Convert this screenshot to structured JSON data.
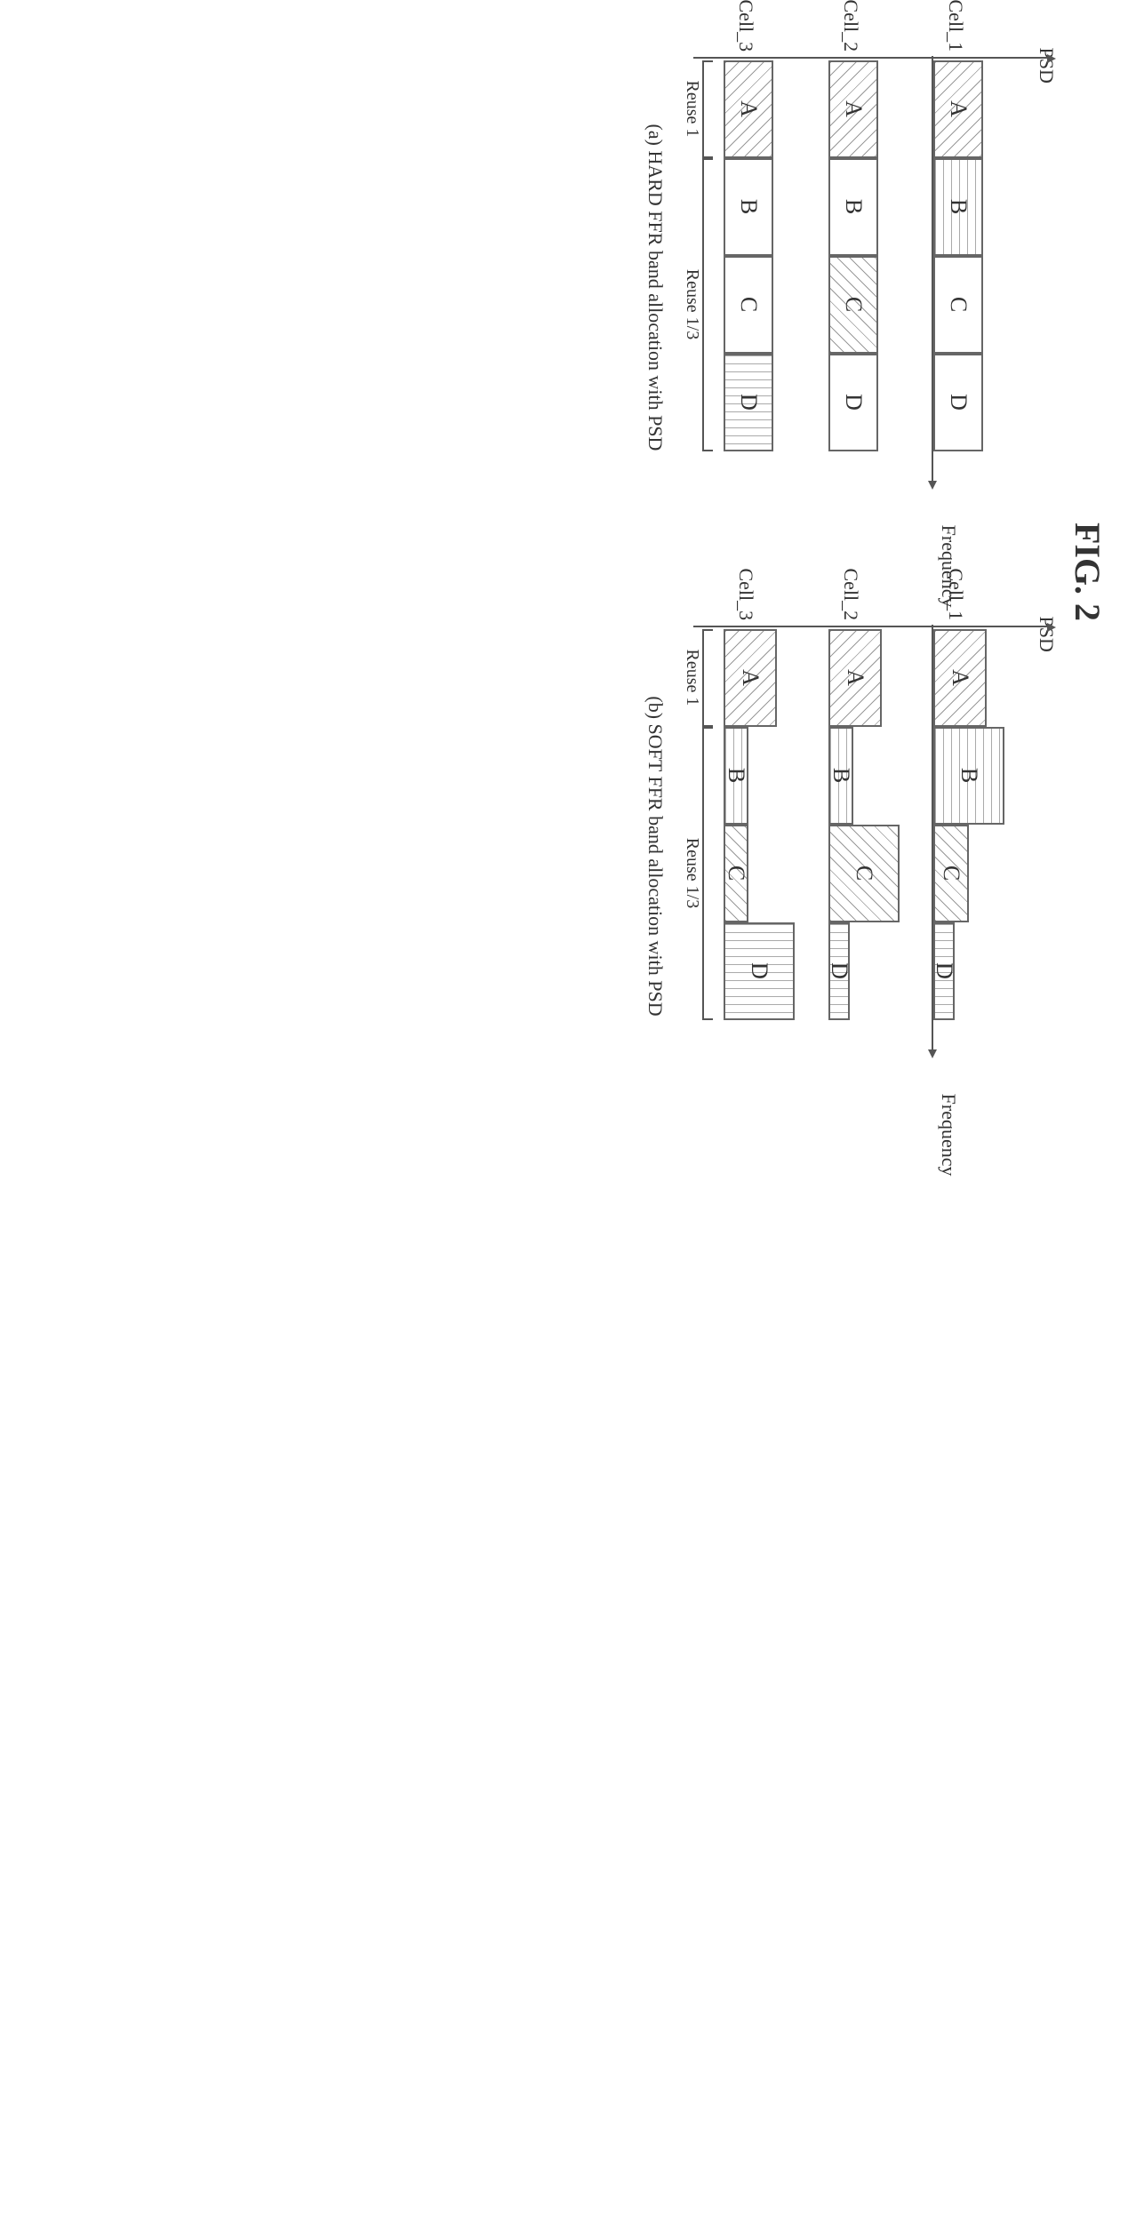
{
  "figure_title": "FIG. 2",
  "global": {
    "border_color": "#666666",
    "background_color": "#ffffff",
    "text_color": "#333333",
    "font_family": "Times New Roman, serif",
    "title_fontsize": 40,
    "axis_label_fontsize": 22,
    "cell_label_fontsize": 22,
    "band_letter_fontsize": 26,
    "caption_fontsize": 22
  },
  "panels": {
    "a": {
      "caption": "(a) HARD FFR band allocation with PSD",
      "y_label": "PSD",
      "x_label": "Frequency",
      "band_width": 110,
      "band_labels": [
        "A",
        "B",
        "C",
        "D"
      ],
      "reuse": {
        "labels": [
          "Reuse 1",
          "Reuse 1/3"
        ],
        "spans": [
          1,
          3
        ]
      },
      "cells": [
        {
          "name": "Cell_1",
          "heights": [
            56,
            56,
            56,
            56
          ],
          "patterns": [
            "diag1",
            "horiz",
            "",
            ""
          ],
          "borders": [
            true,
            true,
            true,
            true
          ]
        },
        {
          "name": "Cell_2",
          "heights": [
            56,
            56,
            56,
            56
          ],
          "patterns": [
            "diag1",
            "",
            "diag2",
            ""
          ],
          "borders": [
            true,
            true,
            true,
            true
          ]
        },
        {
          "name": "Cell_3",
          "heights": [
            56,
            56,
            56,
            56
          ],
          "patterns": [
            "diag1",
            "",
            "",
            "vert"
          ],
          "borders": [
            true,
            true,
            true,
            true
          ]
        }
      ]
    },
    "b": {
      "caption": "(b) SOFT FFR band allocation with PSD",
      "y_label": "PSD",
      "x_label": "Frequency",
      "band_width": 110,
      "band_labels": [
        "A",
        "B",
        "C",
        "D"
      ],
      "reuse": {
        "labels": [
          "Reuse 1",
          "Reuse 1/3"
        ],
        "spans": [
          1,
          3
        ]
      },
      "cells": [
        {
          "name": "Cell_1",
          "heights": [
            60,
            80,
            40,
            24
          ],
          "patterns": [
            "diag1",
            "horiz",
            "diag2",
            "vert"
          ],
          "borders": [
            true,
            true,
            true,
            true
          ]
        },
        {
          "name": "Cell_2",
          "heights": [
            60,
            28,
            80,
            24
          ],
          "patterns": [
            "diag1",
            "horiz",
            "diag2",
            "vert"
          ],
          "borders": [
            true,
            true,
            true,
            true
          ]
        },
        {
          "name": "Cell_3",
          "heights": [
            60,
            28,
            28,
            80
          ],
          "patterns": [
            "diag1",
            "horiz",
            "diag2",
            "vert"
          ],
          "borders": [
            true,
            true,
            true,
            true
          ]
        }
      ]
    }
  },
  "patterns": {
    "diag1": {
      "description": "45deg diagonal hatch",
      "stroke": "#999999",
      "spacing": 10
    },
    "diag2": {
      "description": "-45deg diagonal hatch",
      "stroke": "#999999",
      "spacing": 10
    },
    "horiz": {
      "description": "horizontal lines",
      "stroke": "#aaaaaa",
      "spacing": 9
    },
    "vert": {
      "description": "vertical lines",
      "stroke": "#aaaaaa",
      "spacing": 9
    },
    "dots": {
      "description": "dot fill",
      "stroke": "#999999",
      "spacing": 9
    }
  }
}
